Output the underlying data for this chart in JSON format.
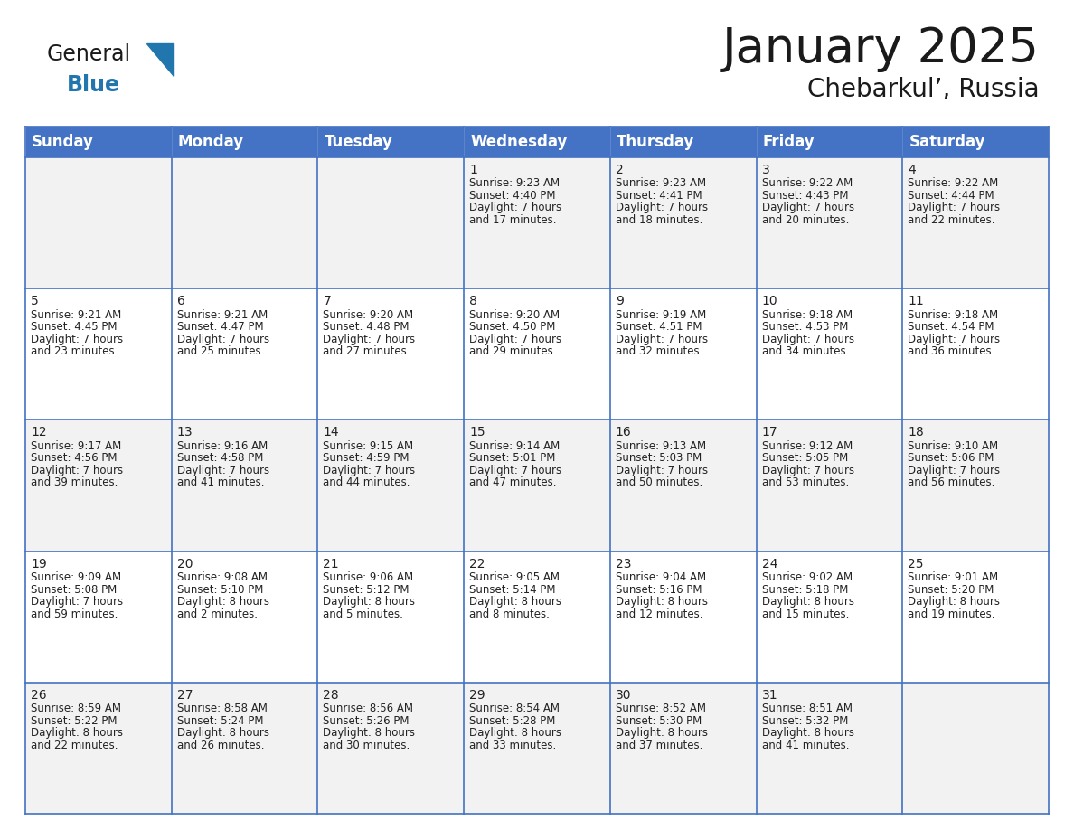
{
  "title": "January 2025",
  "subtitle": "Chebarkul’, Russia",
  "header_color": "#4472C4",
  "header_text_color": "#FFFFFF",
  "cell_bg_even": "#F2F2F2",
  "cell_bg_odd": "#FFFFFF",
  "border_color": "#4472C4",
  "day_headers": [
    "Sunday",
    "Monday",
    "Tuesday",
    "Wednesday",
    "Thursday",
    "Friday",
    "Saturday"
  ],
  "title_fontsize": 38,
  "subtitle_fontsize": 20,
  "header_fontsize": 12,
  "day_num_fontsize": 10,
  "cell_fontsize": 8.5,
  "days": [
    {
      "day": 1,
      "col": 3,
      "row": 0,
      "sunrise": "9:23 AM",
      "sunset": "4:40 PM",
      "daylight_h": "7 hours",
      "daylight_m": "17 minutes."
    },
    {
      "day": 2,
      "col": 4,
      "row": 0,
      "sunrise": "9:23 AM",
      "sunset": "4:41 PM",
      "daylight_h": "7 hours",
      "daylight_m": "18 minutes."
    },
    {
      "day": 3,
      "col": 5,
      "row": 0,
      "sunrise": "9:22 AM",
      "sunset": "4:43 PM",
      "daylight_h": "7 hours",
      "daylight_m": "20 minutes."
    },
    {
      "day": 4,
      "col": 6,
      "row": 0,
      "sunrise": "9:22 AM",
      "sunset": "4:44 PM",
      "daylight_h": "7 hours",
      "daylight_m": "22 minutes."
    },
    {
      "day": 5,
      "col": 0,
      "row": 1,
      "sunrise": "9:21 AM",
      "sunset": "4:45 PM",
      "daylight_h": "7 hours",
      "daylight_m": "23 minutes."
    },
    {
      "day": 6,
      "col": 1,
      "row": 1,
      "sunrise": "9:21 AM",
      "sunset": "4:47 PM",
      "daylight_h": "7 hours",
      "daylight_m": "25 minutes."
    },
    {
      "day": 7,
      "col": 2,
      "row": 1,
      "sunrise": "9:20 AM",
      "sunset": "4:48 PM",
      "daylight_h": "7 hours",
      "daylight_m": "27 minutes."
    },
    {
      "day": 8,
      "col": 3,
      "row": 1,
      "sunrise": "9:20 AM",
      "sunset": "4:50 PM",
      "daylight_h": "7 hours",
      "daylight_m": "29 minutes."
    },
    {
      "day": 9,
      "col": 4,
      "row": 1,
      "sunrise": "9:19 AM",
      "sunset": "4:51 PM",
      "daylight_h": "7 hours",
      "daylight_m": "32 minutes."
    },
    {
      "day": 10,
      "col": 5,
      "row": 1,
      "sunrise": "9:18 AM",
      "sunset": "4:53 PM",
      "daylight_h": "7 hours",
      "daylight_m": "34 minutes."
    },
    {
      "day": 11,
      "col": 6,
      "row": 1,
      "sunrise": "9:18 AM",
      "sunset": "4:54 PM",
      "daylight_h": "7 hours",
      "daylight_m": "36 minutes."
    },
    {
      "day": 12,
      "col": 0,
      "row": 2,
      "sunrise": "9:17 AM",
      "sunset": "4:56 PM",
      "daylight_h": "7 hours",
      "daylight_m": "39 minutes."
    },
    {
      "day": 13,
      "col": 1,
      "row": 2,
      "sunrise": "9:16 AM",
      "sunset": "4:58 PM",
      "daylight_h": "7 hours",
      "daylight_m": "41 minutes."
    },
    {
      "day": 14,
      "col": 2,
      "row": 2,
      "sunrise": "9:15 AM",
      "sunset": "4:59 PM",
      "daylight_h": "7 hours",
      "daylight_m": "44 minutes."
    },
    {
      "day": 15,
      "col": 3,
      "row": 2,
      "sunrise": "9:14 AM",
      "sunset": "5:01 PM",
      "daylight_h": "7 hours",
      "daylight_m": "47 minutes."
    },
    {
      "day": 16,
      "col": 4,
      "row": 2,
      "sunrise": "9:13 AM",
      "sunset": "5:03 PM",
      "daylight_h": "7 hours",
      "daylight_m": "50 minutes."
    },
    {
      "day": 17,
      "col": 5,
      "row": 2,
      "sunrise": "9:12 AM",
      "sunset": "5:05 PM",
      "daylight_h": "7 hours",
      "daylight_m": "53 minutes."
    },
    {
      "day": 18,
      "col": 6,
      "row": 2,
      "sunrise": "9:10 AM",
      "sunset": "5:06 PM",
      "daylight_h": "7 hours",
      "daylight_m": "56 minutes."
    },
    {
      "day": 19,
      "col": 0,
      "row": 3,
      "sunrise": "9:09 AM",
      "sunset": "5:08 PM",
      "daylight_h": "7 hours",
      "daylight_m": "59 minutes."
    },
    {
      "day": 20,
      "col": 1,
      "row": 3,
      "sunrise": "9:08 AM",
      "sunset": "5:10 PM",
      "daylight_h": "8 hours",
      "daylight_m": "2 minutes."
    },
    {
      "day": 21,
      "col": 2,
      "row": 3,
      "sunrise": "9:06 AM",
      "sunset": "5:12 PM",
      "daylight_h": "8 hours",
      "daylight_m": "5 minutes."
    },
    {
      "day": 22,
      "col": 3,
      "row": 3,
      "sunrise": "9:05 AM",
      "sunset": "5:14 PM",
      "daylight_h": "8 hours",
      "daylight_m": "8 minutes."
    },
    {
      "day": 23,
      "col": 4,
      "row": 3,
      "sunrise": "9:04 AM",
      "sunset": "5:16 PM",
      "daylight_h": "8 hours",
      "daylight_m": "12 minutes."
    },
    {
      "day": 24,
      "col": 5,
      "row": 3,
      "sunrise": "9:02 AM",
      "sunset": "5:18 PM",
      "daylight_h": "8 hours",
      "daylight_m": "15 minutes."
    },
    {
      "day": 25,
      "col": 6,
      "row": 3,
      "sunrise": "9:01 AM",
      "sunset": "5:20 PM",
      "daylight_h": "8 hours",
      "daylight_m": "19 minutes."
    },
    {
      "day": 26,
      "col": 0,
      "row": 4,
      "sunrise": "8:59 AM",
      "sunset": "5:22 PM",
      "daylight_h": "8 hours",
      "daylight_m": "22 minutes."
    },
    {
      "day": 27,
      "col": 1,
      "row": 4,
      "sunrise": "8:58 AM",
      "sunset": "5:24 PM",
      "daylight_h": "8 hours",
      "daylight_m": "26 minutes."
    },
    {
      "day": 28,
      "col": 2,
      "row": 4,
      "sunrise": "8:56 AM",
      "sunset": "5:26 PM",
      "daylight_h": "8 hours",
      "daylight_m": "30 minutes."
    },
    {
      "day": 29,
      "col": 3,
      "row": 4,
      "sunrise": "8:54 AM",
      "sunset": "5:28 PM",
      "daylight_h": "8 hours",
      "daylight_m": "33 minutes."
    },
    {
      "day": 30,
      "col": 4,
      "row": 4,
      "sunrise": "8:52 AM",
      "sunset": "5:30 PM",
      "daylight_h": "8 hours",
      "daylight_m": "37 minutes."
    },
    {
      "day": 31,
      "col": 5,
      "row": 4,
      "sunrise": "8:51 AM",
      "sunset": "5:32 PM",
      "daylight_h": "8 hours",
      "daylight_m": "41 minutes."
    }
  ],
  "num_rows": 5,
  "num_cols": 7,
  "logo_general_color": "#1a1a1a",
  "logo_blue_color": "#2176AE",
  "logo_triangle_color": "#2176AE"
}
